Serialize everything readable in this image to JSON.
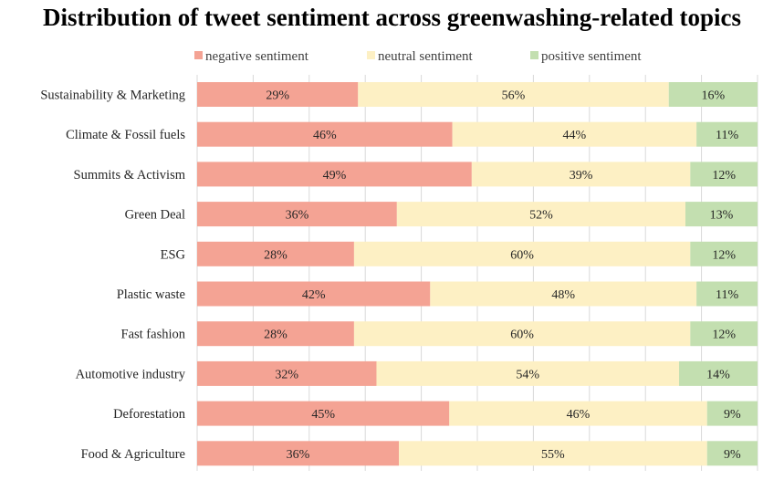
{
  "chart_data": {
    "type": "bar",
    "orientation": "horizontal",
    "stacked": "percent",
    "title": "Distribution of tweet sentiment across greenwashing-related topics",
    "legend_position": "top",
    "grid": true,
    "xlim": [
      0,
      100
    ],
    "categories": [
      "Sustainability & Marketing",
      "Climate & Fossil fuels",
      "Summits & Activism",
      "Green Deal",
      "ESG",
      "Plastic waste",
      "Fast fashion",
      "Automotive industry",
      "Deforestation",
      "Food & Agriculture"
    ],
    "series": [
      {
        "name": "negative sentiment",
        "color": "#f4a394",
        "values": [
          29,
          46,
          49,
          36,
          28,
          42,
          28,
          32,
          45,
          36
        ],
        "labels": [
          "29%",
          "46%",
          "49%",
          "36%",
          "28%",
          "42%",
          "28%",
          "32%",
          "45%",
          "36%"
        ]
      },
      {
        "name": "neutral sentiment",
        "color": "#fdf0c4",
        "values": [
          56,
          44,
          39,
          52,
          60,
          48,
          60,
          54,
          46,
          55
        ],
        "labels": [
          "56%",
          "44%",
          "39%",
          "52%",
          "60%",
          "48%",
          "60%",
          "54%",
          "46%",
          "55%"
        ]
      },
      {
        "name": "positive sentiment",
        "color": "#c3dfb0",
        "values": [
          16,
          11,
          12,
          13,
          12,
          11,
          12,
          14,
          9,
          9
        ],
        "labels": [
          "16%",
          "11%",
          "12%",
          "13%",
          "12%",
          "11%",
          "12%",
          "14%",
          "9%",
          "9%"
        ]
      }
    ]
  }
}
